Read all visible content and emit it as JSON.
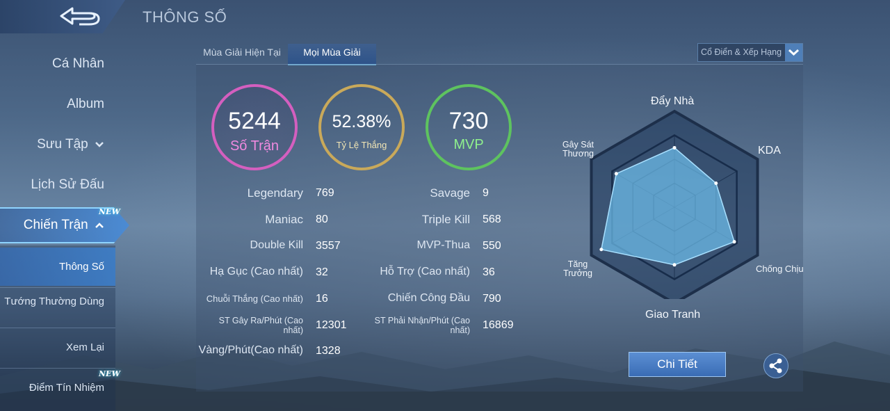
{
  "header": {
    "title": "THÔNG SỐ"
  },
  "sidebar": {
    "items": [
      {
        "label": "Cá Nhân"
      },
      {
        "label": "Album"
      },
      {
        "label": "Sưu Tập"
      },
      {
        "label": "Lịch Sử Đấu"
      },
      {
        "label": "Chiến Trận",
        "badge": "NEW",
        "active": true
      }
    ],
    "subitems": [
      {
        "label": "Thông Số",
        "active": true
      },
      {
        "label": "Tướng Thường Dùng"
      },
      {
        "label": "Xem Lại"
      },
      {
        "label": "Điểm Tín Nhiệm",
        "badge": "NEW"
      }
    ]
  },
  "tabs": [
    {
      "label": "Mùa Giải Hiện Tại"
    },
    {
      "label": "Mọi Mùa Giải",
      "active": true
    }
  ],
  "mode_select": {
    "value": "Cổ Điển & Xếp Hạng"
  },
  "summary": {
    "matches": {
      "value": "5244",
      "label": "Số Trận"
    },
    "winrate": {
      "value": "52.38%",
      "label": "Tỷ Lệ Thắng"
    },
    "mvp": {
      "value": "730",
      "label": "MVP"
    }
  },
  "stats_left": [
    {
      "label": "Legendary",
      "value": "769"
    },
    {
      "label": "Maniac",
      "value": "80"
    },
    {
      "label": "Double Kill",
      "value": "3557"
    },
    {
      "label": "Hạ Gục (Cao nhất)",
      "value": "32"
    },
    {
      "label": "Chuỗi Thắng (Cao nhất)",
      "value": "16"
    },
    {
      "label": "ST Gây Ra/Phút (Cao nhất)",
      "value": "12301"
    },
    {
      "label": "Vàng/Phút(Cao nhất)",
      "value": "1328"
    }
  ],
  "stats_right": [
    {
      "label": "Savage",
      "value": "9"
    },
    {
      "label": "Triple Kill",
      "value": "568"
    },
    {
      "label": "MVP-Thua",
      "value": "550"
    },
    {
      "label": "Hỗ Trợ (Cao nhất)",
      "value": "36"
    },
    {
      "label": "Chiến Công Đầu",
      "value": "790"
    },
    {
      "label": "ST Phải Nhận/Phút (Cao nhất)",
      "value": "16869"
    }
  ],
  "radar": {
    "labels": {
      "push": "Đẩy Nhà",
      "kda": "KDA",
      "tank": "Chống Chịu",
      "fight": "Giao Tranh",
      "growth": "Tăng Trưởng",
      "damage": "Gây Sát Thương"
    },
    "values": {
      "push": 0.62,
      "kda": 0.5,
      "tank": 0.72,
      "fight": 0.6,
      "growth": 0.88,
      "damage": 0.7
    }
  },
  "buttons": {
    "detail": "Chi Tiết"
  },
  "colors": {
    "pink": "#d45fbf",
    "gold": "#c9a95a",
    "green": "#5ec35f",
    "accent": "#7fd0ff"
  }
}
